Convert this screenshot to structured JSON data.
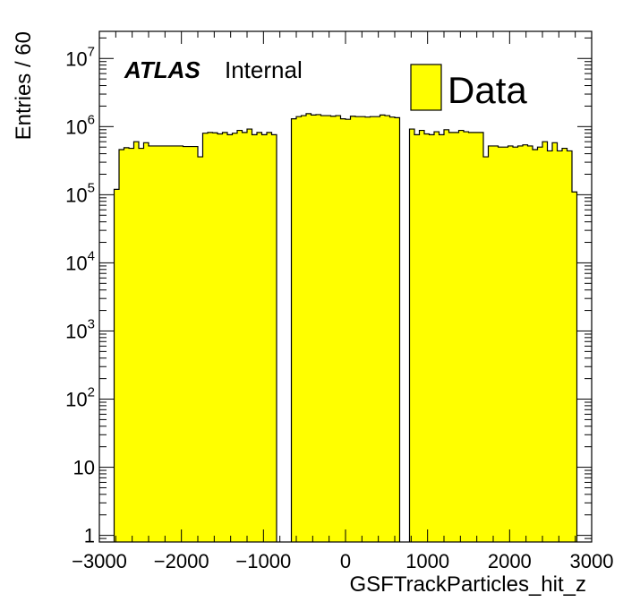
{
  "chart_data": {
    "type": "bar",
    "xlabel": "GSFTrackParticles_hit_z",
    "ylabel": "Entries / 60",
    "xlim": [
      -3000,
      3000
    ],
    "ylim": [
      0.8,
      25000000
    ],
    "log_y": true,
    "grid": false,
    "legend_position": "top-right",
    "x_ticks": [
      -3000,
      -2000,
      -1000,
      0,
      1000,
      2000,
      3000
    ],
    "x_tick_labels": [
      "−3000",
      "−2000",
      "−1000",
      "0",
      "1000",
      "2000",
      "3000"
    ],
    "y_ticks": [
      {
        "value": 1,
        "base": "1",
        "exp": ""
      },
      {
        "value": 10,
        "base": "10",
        "exp": ""
      },
      {
        "value": 100,
        "base": "10",
        "exp": "2"
      },
      {
        "value": 1000,
        "base": "10",
        "exp": "3"
      },
      {
        "value": 10000,
        "base": "10",
        "exp": "4"
      },
      {
        "value": 100000,
        "base": "10",
        "exp": "5"
      },
      {
        "value": 1000000,
        "base": "10",
        "exp": "6"
      },
      {
        "value": 10000000,
        "base": "10",
        "exp": "7"
      }
    ],
    "annotation": {
      "atlas": "ATLAS",
      "status": "Internal"
    },
    "colors": {
      "fill": "#ffff00",
      "line": "#000000"
    },
    "series": [
      {
        "name": "Data",
        "bin_width": 60,
        "bins": [
          [
            -2820,
            120000
          ],
          [
            -2760,
            460000
          ],
          [
            -2700,
            490000
          ],
          [
            -2640,
            480000
          ],
          [
            -2580,
            600000
          ],
          [
            -2520,
            480000
          ],
          [
            -2460,
            580000
          ],
          [
            -2400,
            520000
          ],
          [
            -2340,
            520000
          ],
          [
            -2280,
            520000
          ],
          [
            -2220,
            520000
          ],
          [
            -2160,
            520000
          ],
          [
            -2100,
            520000
          ],
          [
            -2040,
            520000
          ],
          [
            -1980,
            510000
          ],
          [
            -1920,
            510000
          ],
          [
            -1860,
            510000
          ],
          [
            -1800,
            360000
          ],
          [
            -1740,
            800000
          ],
          [
            -1680,
            820000
          ],
          [
            -1620,
            810000
          ],
          [
            -1560,
            780000
          ],
          [
            -1500,
            820000
          ],
          [
            -1440,
            760000
          ],
          [
            -1380,
            800000
          ],
          [
            -1320,
            880000
          ],
          [
            -1260,
            820000
          ],
          [
            -1200,
            920000
          ],
          [
            -1140,
            760000
          ],
          [
            -1080,
            820000
          ],
          [
            -1020,
            760000
          ],
          [
            -960,
            820000
          ],
          [
            -900,
            760000
          ],
          [
            -660,
            1300000
          ],
          [
            -600,
            1400000
          ],
          [
            -540,
            1450000
          ],
          [
            -480,
            1550000
          ],
          [
            -420,
            1480000
          ],
          [
            -360,
            1500000
          ],
          [
            -300,
            1450000
          ],
          [
            -240,
            1450000
          ],
          [
            -180,
            1420000
          ],
          [
            -120,
            1450000
          ],
          [
            -60,
            1300000
          ],
          [
            0,
            1280000
          ],
          [
            60,
            1420000
          ],
          [
            120,
            1400000
          ],
          [
            180,
            1400000
          ],
          [
            240,
            1380000
          ],
          [
            300,
            1400000
          ],
          [
            360,
            1400000
          ],
          [
            420,
            1480000
          ],
          [
            480,
            1450000
          ],
          [
            540,
            1380000
          ],
          [
            600,
            1350000
          ],
          [
            780,
            920000
          ],
          [
            840,
            760000
          ],
          [
            900,
            880000
          ],
          [
            960,
            780000
          ],
          [
            1020,
            760000
          ],
          [
            1080,
            840000
          ],
          [
            1140,
            760000
          ],
          [
            1200,
            900000
          ],
          [
            1260,
            820000
          ],
          [
            1320,
            820000
          ],
          [
            1380,
            880000
          ],
          [
            1440,
            840000
          ],
          [
            1500,
            820000
          ],
          [
            1560,
            820000
          ],
          [
            1620,
            820000
          ],
          [
            1680,
            360000
          ],
          [
            1740,
            520000
          ],
          [
            1800,
            520000
          ],
          [
            1860,
            500000
          ],
          [
            1920,
            500000
          ],
          [
            1980,
            520000
          ],
          [
            2040,
            500000
          ],
          [
            2100,
            520000
          ],
          [
            2160,
            540000
          ],
          [
            2220,
            520000
          ],
          [
            2280,
            460000
          ],
          [
            2340,
            500000
          ],
          [
            2400,
            600000
          ],
          [
            2460,
            440000
          ],
          [
            2520,
            580000
          ],
          [
            2580,
            440000
          ],
          [
            2640,
            480000
          ],
          [
            2700,
            440000
          ],
          [
            2760,
            110000
          ]
        ]
      }
    ]
  }
}
